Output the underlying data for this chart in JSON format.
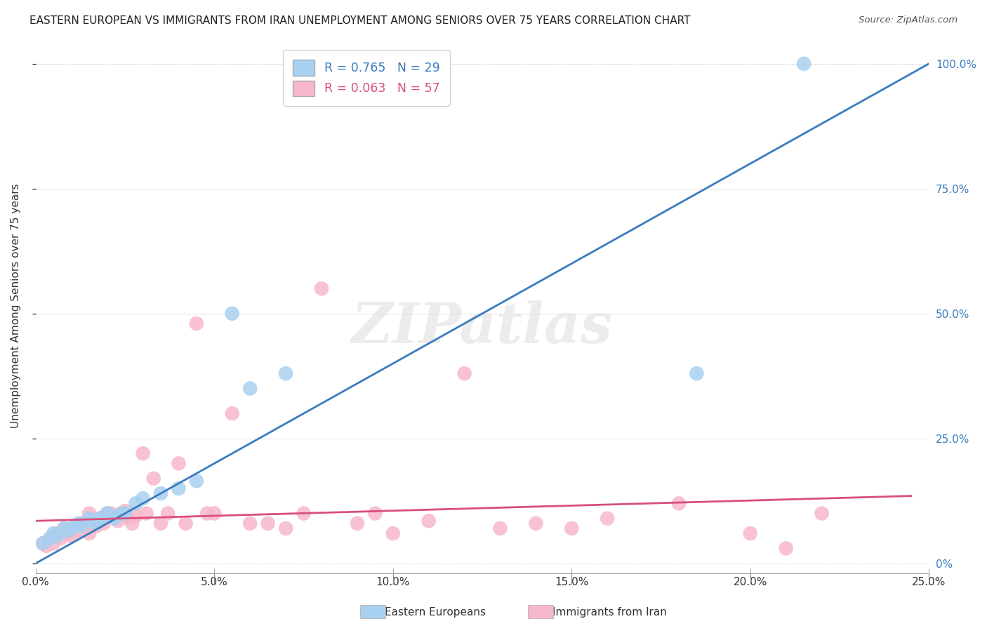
{
  "title": "EASTERN EUROPEAN VS IMMIGRANTS FROM IRAN UNEMPLOYMENT AMONG SENIORS OVER 75 YEARS CORRELATION CHART",
  "source": "Source: ZipAtlas.com",
  "ylabel": "Unemployment Among Seniors over 75 years",
  "xlim": [
    0.0,
    0.25
  ],
  "ylim": [
    -0.02,
    1.05
  ],
  "xticks": [
    0.0,
    0.05,
    0.1,
    0.15,
    0.2,
    0.25
  ],
  "xtick_labels": [
    "0.0%",
    "5.0%",
    "10.0%",
    "15.0%",
    "20.0%",
    "25.0%"
  ],
  "yticks": [
    0.0,
    0.25,
    0.5,
    0.75,
    1.0
  ],
  "ytick_labels_right": [
    "0%",
    "25.0%",
    "50.0%",
    "75.0%",
    "100.0%"
  ],
  "blue_R": 0.765,
  "blue_N": 29,
  "pink_R": 0.063,
  "pink_N": 57,
  "blue_color": "#a8d0f0",
  "pink_color": "#f7b8cb",
  "blue_line_color": "#3a7bbf",
  "pink_line_color": "#d94f7a",
  "legend_label_blue": "Eastern Europeans",
  "legend_label_pink": "Immigrants from Iran",
  "watermark": "ZIPatlas",
  "blue_x": [
    0.002,
    0.004,
    0.005,
    0.006,
    0.008,
    0.009,
    0.01,
    0.011,
    0.012,
    0.013,
    0.015,
    0.016,
    0.017,
    0.018,
    0.02,
    0.021,
    0.022,
    0.024,
    0.025,
    0.028,
    0.03,
    0.035,
    0.04,
    0.045,
    0.055,
    0.06,
    0.07,
    0.185,
    0.215
  ],
  "blue_y": [
    0.04,
    0.05,
    0.06,
    0.055,
    0.07,
    0.065,
    0.07,
    0.075,
    0.08,
    0.075,
    0.09,
    0.085,
    0.08,
    0.09,
    0.1,
    0.095,
    0.09,
    0.1,
    0.1,
    0.12,
    0.13,
    0.14,
    0.15,
    0.165,
    0.5,
    0.35,
    0.38,
    0.38,
    1.0
  ],
  "pink_x": [
    0.002,
    0.003,
    0.004,
    0.005,
    0.006,
    0.007,
    0.008,
    0.009,
    0.01,
    0.011,
    0.012,
    0.013,
    0.014,
    0.015,
    0.015,
    0.016,
    0.017,
    0.018,
    0.019,
    0.02,
    0.021,
    0.022,
    0.023,
    0.024,
    0.025,
    0.026,
    0.027,
    0.028,
    0.03,
    0.031,
    0.033,
    0.035,
    0.037,
    0.04,
    0.042,
    0.045,
    0.048,
    0.05,
    0.055,
    0.06,
    0.065,
    0.07,
    0.075,
    0.08,
    0.09,
    0.095,
    0.1,
    0.11,
    0.12,
    0.13,
    0.14,
    0.15,
    0.16,
    0.18,
    0.2,
    0.21,
    0.22
  ],
  "pink_y": [
    0.04,
    0.035,
    0.05,
    0.04,
    0.06,
    0.05,
    0.07,
    0.06,
    0.055,
    0.07,
    0.065,
    0.08,
    0.075,
    0.06,
    0.1,
    0.08,
    0.075,
    0.09,
    0.08,
    0.1,
    0.1,
    0.095,
    0.085,
    0.1,
    0.105,
    0.09,
    0.08,
    0.095,
    0.22,
    0.1,
    0.17,
    0.08,
    0.1,
    0.2,
    0.08,
    0.48,
    0.1,
    0.1,
    0.3,
    0.08,
    0.08,
    0.07,
    0.1,
    0.55,
    0.08,
    0.1,
    0.06,
    0.085,
    0.38,
    0.07,
    0.08,
    0.07,
    0.09,
    0.12,
    0.06,
    0.03,
    0.1
  ],
  "blue_line_x": [
    0.0,
    0.25
  ],
  "blue_line_y": [
    0.0,
    1.0
  ],
  "pink_line_x": [
    0.0,
    0.245
  ],
  "pink_line_y": [
    0.085,
    0.135
  ]
}
